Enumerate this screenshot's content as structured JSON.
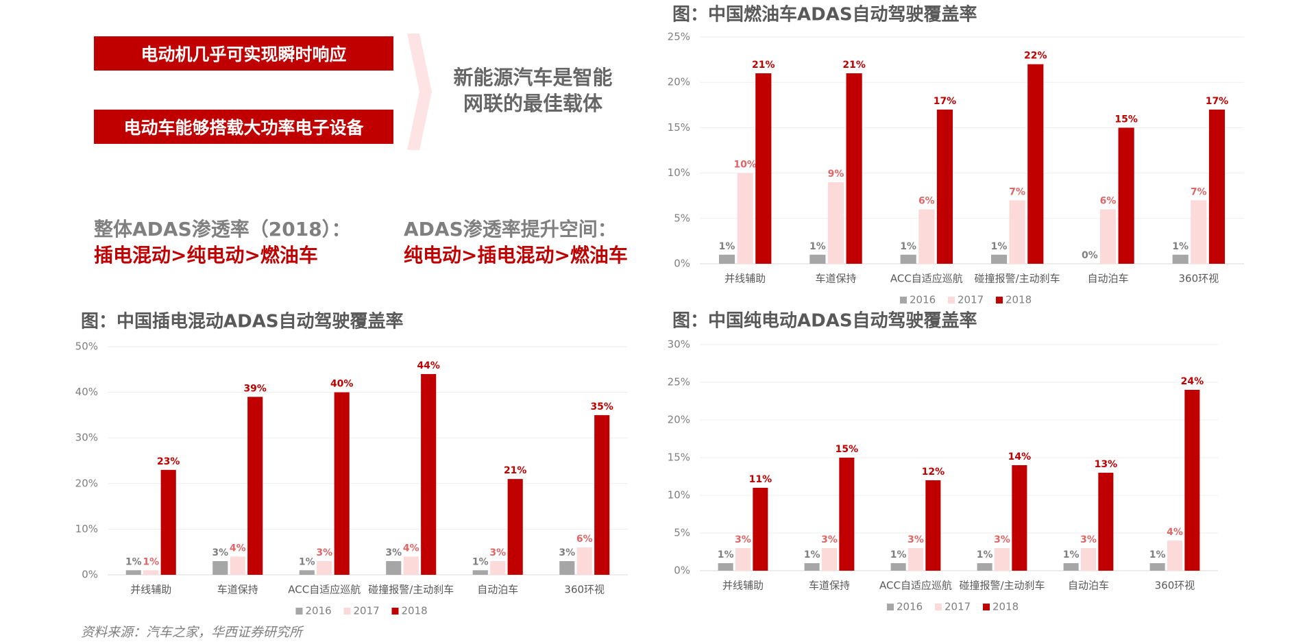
{
  "callouts": [
    "电动机几乎可实现瞬时响应",
    "电动车能够搭载大功率电子设备"
  ],
  "conclusion": "新能源汽车是智能网联的最佳载体",
  "summary": [
    {
      "label": "整体ADAS渗透率（2018）：",
      "value": "插电混动>纯电动>燃油车"
    },
    {
      "label": "ADAS渗透率提升空间：",
      "value": "纯电动>插电混动>燃油车"
    }
  ],
  "source": "资料来源：汽车之家，华西证券研究所",
  "chart_data": [
    {
      "type": "bar",
      "title": "图：中国燃油车ADAS自动驾驶覆盖率",
      "categories": [
        "并线辅助",
        "车道保持",
        "ACC自适应巡航",
        "碰撞报警/主动刹车",
        "自动泊车",
        "360环视"
      ],
      "series": [
        {
          "name": "2016",
          "color": "#a6a6a6",
          "label_color": "#7f7f7f",
          "values": [
            1,
            1,
            1,
            1,
            0,
            1
          ],
          "value_labels": [
            "1%",
            "1%",
            "1%",
            "1%",
            "0%",
            "1%"
          ]
        },
        {
          "name": "2017",
          "color": "#fcdada",
          "label_color": "#e06666",
          "values": [
            10,
            9,
            6,
            7,
            6,
            7
          ],
          "value_labels": [
            "10%",
            "9%",
            "6%",
            "7%",
            "6%",
            "7%"
          ]
        },
        {
          "name": "2018",
          "color": "#c00000",
          "label_color": "#c00000",
          "values": [
            21,
            21,
            17,
            22,
            15,
            17
          ],
          "value_labels": [
            "21%",
            "21%",
            "17%",
            "22%",
            "15%",
            "17%"
          ]
        }
      ],
      "ylim": [
        0,
        25
      ],
      "yticks": [
        {
          "value": 0,
          "label": "0%"
        },
        {
          "value": 5,
          "label": "5%"
        },
        {
          "value": 10,
          "label": "10%"
        },
        {
          "value": 15,
          "label": "15%"
        },
        {
          "value": 20,
          "label": "20%"
        },
        {
          "value": 25,
          "label": "25%"
        }
      ],
      "grid": true,
      "legend": "bottom"
    },
    {
      "type": "bar",
      "title": "图：中国插电混动ADAS自动驾驶覆盖率",
      "categories": [
        "并线辅助",
        "车道保持",
        "ACC自适应巡航",
        "碰撞报警/主动刹车",
        "自动泊车",
        "360环视"
      ],
      "series": [
        {
          "name": "2016",
          "color": "#a6a6a6",
          "label_color": "#7f7f7f",
          "values": [
            1,
            3,
            1,
            3,
            1,
            3
          ],
          "value_labels": [
            "1%",
            "3%",
            "1%",
            "3%",
            "1%",
            "3%"
          ]
        },
        {
          "name": "2017",
          "color": "#fcdada",
          "label_color": "#e06666",
          "values": [
            1,
            4,
            3,
            4,
            3,
            6
          ],
          "value_labels": [
            "1%",
            "4%",
            "3%",
            "4%",
            "3%",
            "6%"
          ]
        },
        {
          "name": "2018",
          "color": "#c00000",
          "label_color": "#c00000",
          "values": [
            23,
            39,
            40,
            44,
            21,
            35
          ],
          "value_labels": [
            "23%",
            "39%",
            "40%",
            "44%",
            "21%",
            "35%"
          ]
        }
      ],
      "ylim": [
        0,
        50
      ],
      "yticks": [
        {
          "value": 0,
          "label": "0%"
        },
        {
          "value": 10,
          "label": "10%"
        },
        {
          "value": 20,
          "label": "20%"
        },
        {
          "value": 30,
          "label": "30%"
        },
        {
          "value": 40,
          "label": "40%"
        },
        {
          "value": 50,
          "label": "50%"
        }
      ],
      "grid": true,
      "legend": "bottom"
    },
    {
      "type": "bar",
      "title": "图：中国纯电动ADAS自动驾驶覆盖率",
      "categories": [
        "并线辅助",
        "车道保持",
        "ACC自适应巡航",
        "碰撞报警/主动刹车",
        "自动泊车",
        "360环视"
      ],
      "series": [
        {
          "name": "2016",
          "color": "#a6a6a6",
          "label_color": "#7f7f7f",
          "values": [
            1,
            1,
            1,
            1,
            1,
            1
          ],
          "value_labels": [
            "1%",
            "1%",
            "1%",
            "1%",
            "1%",
            "1%"
          ]
        },
        {
          "name": "2017",
          "color": "#fcdada",
          "label_color": "#e06666",
          "values": [
            3,
            3,
            3,
            3,
            3,
            4
          ],
          "value_labels": [
            "3%",
            "3%",
            "3%",
            "3%",
            "3%",
            "4%"
          ]
        },
        {
          "name": "2018",
          "color": "#c00000",
          "label_color": "#c00000",
          "values": [
            11,
            15,
            12,
            14,
            13,
            24
          ],
          "value_labels": [
            "11%",
            "15%",
            "12%",
            "14%",
            "13%",
            "24%"
          ]
        }
      ],
      "ylim": [
        0,
        30
      ],
      "yticks": [
        {
          "value": 0,
          "label": "0%"
        },
        {
          "value": 5,
          "label": "5%"
        },
        {
          "value": 10,
          "label": "10%"
        },
        {
          "value": 15,
          "label": "15%"
        },
        {
          "value": 20,
          "label": "20%"
        },
        {
          "value": 25,
          "label": "25%"
        },
        {
          "value": 30,
          "label": "30%"
        }
      ],
      "grid": true,
      "legend": "bottom"
    }
  ]
}
